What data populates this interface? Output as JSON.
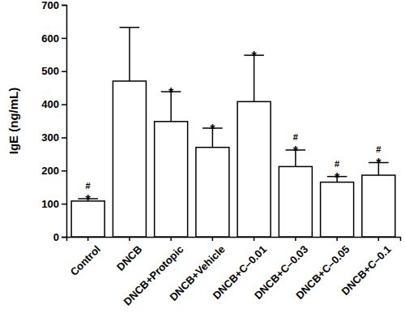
{
  "chart_data": {
    "type": "bar",
    "y_label": "IgE (ng/mL)",
    "categories": [
      "Control",
      "DNCB",
      "DNCB+Protopic",
      "DNCB+Vehicle",
      "DNCB+C–0.01",
      "DNCB+C–0.03",
      "DNCB+C–0.05",
      "DNCB+C–0.1"
    ],
    "values": [
      108,
      470,
      348,
      270,
      408,
      212,
      165,
      186
    ],
    "error": [
      7,
      162,
      90,
      58,
      140,
      50,
      17,
      38
    ],
    "annotations": [
      [
        "#",
        "*"
      ],
      [],
      [
        "*"
      ],
      [
        "*"
      ],
      [
        "*"
      ],
      [
        "#",
        "*"
      ],
      [
        "#",
        "*"
      ],
      [
        "#",
        "*"
      ]
    ],
    "color": "#ffffff",
    "ylim": [
      0,
      700
    ],
    "yticks": [
      0,
      100,
      200,
      300,
      400,
      500,
      600,
      700
    ],
    "grid": false
  }
}
